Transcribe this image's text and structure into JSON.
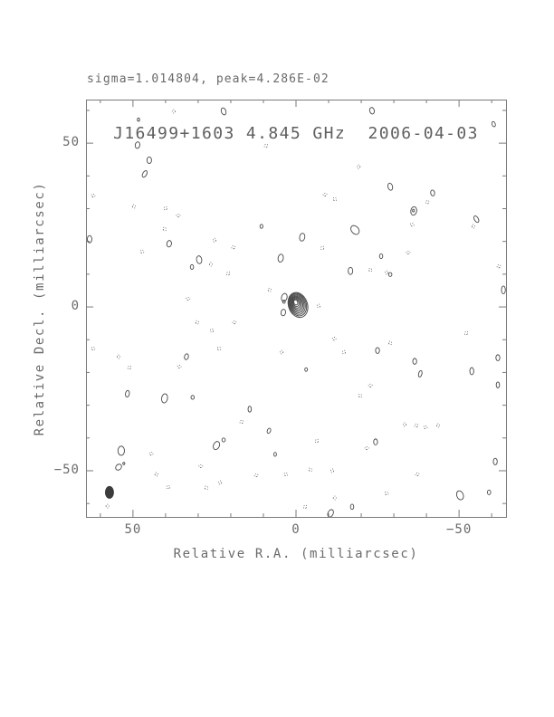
{
  "chart_data": {
    "type": "contour",
    "header": "sigma=1.014804, peak=4.286E-02",
    "title": "J16499+1603 4.845 GHz  2006-04-03",
    "xlabel": "Relative R.A. (milliarcsec)",
    "ylabel": "Relative Decl. (milliarcsec)",
    "x_range": [
      64.4,
      -64.4
    ],
    "y_range": [
      63.3,
      -64.1
    ],
    "x_ticks": [
      {
        "value": 50,
        "label": "50"
      },
      {
        "value": 0,
        "label": "0"
      },
      {
        "value": -50,
        "label": "−50"
      }
    ],
    "y_ticks": [
      {
        "value": 50,
        "label": "50"
      },
      {
        "value": 0,
        "label": "0"
      },
      {
        "value": -50,
        "label": "−50"
      }
    ],
    "minor_tick_step": 10,
    "grid": false,
    "colors": {
      "text": "#6a6a6a",
      "frame": "#7a7a7a",
      "contour_positive": "#474747",
      "contour_negative": "#585858",
      "beam_fill": "#3c3c3c",
      "background": "#ffffff"
    },
    "source": {
      "name": "J16499+1603",
      "frequency_ghz": 4.845,
      "date": "2006-04-03",
      "sigma": 1.014804,
      "peak": "4.286E-02",
      "ra_mas": -0.6,
      "dec_mas": 0.6,
      "outer_rx_mas": 2.9,
      "outer_ry_mas": 3.9,
      "angle_deg": -20,
      "n_levels": 9
    },
    "satellite_contours": [
      [
        3.6,
        2.9,
        0.85,
        1.25,
        15
      ],
      [
        3.7,
        1.6,
        0.4,
        0.5,
        0
      ],
      [
        3.9,
        -1.7,
        0.7,
        1.0,
        10
      ]
    ],
    "beam": {
      "ra_mas": 57.2,
      "dec_mas": -56.6,
      "rx_mas": 1.25,
      "ry_mas": 1.8,
      "angle_deg": 0
    },
    "noise_contours_positive": [
      [
        22.2,
        59.7,
        0.7,
        1.1,
        -20
      ],
      [
        48.3,
        57.2,
        0.35,
        0.5,
        0
      ],
      [
        48.6,
        49.4,
        0.7,
        1.0,
        10
      ],
      [
        45.0,
        44.8,
        0.7,
        1.0,
        0
      ],
      [
        46.4,
        40.6,
        0.6,
        1.1,
        30
      ],
      [
        63.3,
        20.7,
        0.7,
        1.1,
        0
      ],
      [
        38.9,
        19.3,
        0.7,
        1.0,
        10
      ],
      [
        29.7,
        14.4,
        0.8,
        1.2,
        -10
      ],
      [
        31.9,
        12.2,
        0.5,
        0.7,
        0
      ],
      [
        10.6,
        24.6,
        0.45,
        0.6,
        0
      ],
      [
        4.7,
        14.9,
        0.8,
        1.2,
        10
      ],
      [
        -23.3,
        59.9,
        0.7,
        1.0,
        -15
      ],
      [
        -60.6,
        55.8,
        0.5,
        0.8,
        -20
      ],
      [
        -28.9,
        36.7,
        0.7,
        1.1,
        -15
      ],
      [
        -36.1,
        29.3,
        0.9,
        1.3,
        10
      ],
      [
        -36.0,
        29.4,
        0.3,
        0.4,
        0
      ],
      [
        -41.9,
        34.8,
        0.6,
        0.9,
        -10
      ],
      [
        -55.3,
        26.8,
        0.6,
        1.1,
        -30
      ],
      [
        -18.1,
        23.5,
        1.1,
        1.5,
        -40
      ],
      [
        -1.9,
        21.3,
        0.8,
        1.2,
        10
      ],
      [
        -26.1,
        15.5,
        0.5,
        0.7,
        0
      ],
      [
        -16.7,
        11.0,
        0.7,
        1.1,
        0
      ],
      [
        -28.9,
        9.9,
        0.5,
        0.6,
        0
      ],
      [
        -63.6,
        5.2,
        0.6,
        1.2,
        0
      ],
      [
        33.6,
        -15.2,
        0.6,
        0.9,
        15
      ],
      [
        51.7,
        -26.5,
        0.6,
        1.0,
        10
      ],
      [
        40.3,
        -27.9,
        0.9,
        1.4,
        10
      ],
      [
        31.7,
        -27.6,
        0.5,
        0.6,
        0
      ],
      [
        14.2,
        -31.2,
        0.5,
        0.9,
        0
      ],
      [
        8.3,
        -37.8,
        0.5,
        0.8,
        20
      ],
      [
        24.4,
        -42.3,
        0.9,
        1.3,
        25
      ],
      [
        22.2,
        -40.6,
        0.5,
        0.6,
        0
      ],
      [
        53.6,
        -43.9,
        1.0,
        1.4,
        0
      ],
      [
        6.4,
        -45.0,
        0.4,
        0.6,
        0
      ],
      [
        54.4,
        -48.9,
        0.8,
        1.0,
        45
      ],
      [
        52.8,
        -47.8,
        0.3,
        0.35,
        0
      ],
      [
        -25.0,
        -13.3,
        0.6,
        0.9,
        0
      ],
      [
        -36.4,
        -16.6,
        0.6,
        0.9,
        0
      ],
      [
        -38.1,
        -20.4,
        0.5,
        1.0,
        15
      ],
      [
        -53.9,
        -19.6,
        0.6,
        1.1,
        0
      ],
      [
        -61.9,
        -15.5,
        0.6,
        0.9,
        0
      ],
      [
        -61.9,
        -23.8,
        0.5,
        0.9,
        0
      ],
      [
        -3.1,
        -19.1,
        0.4,
        0.55,
        0
      ],
      [
        -24.4,
        -41.2,
        0.6,
        0.9,
        0
      ],
      [
        -61.1,
        -47.2,
        0.6,
        1.0,
        0
      ],
      [
        -50.3,
        -57.5,
        1.0,
        1.4,
        -20
      ],
      [
        -59.2,
        -56.6,
        0.5,
        0.7,
        0
      ],
      [
        -17.2,
        -61.0,
        0.5,
        0.8,
        0
      ],
      [
        -10.6,
        -63.0,
        0.8,
        1.2,
        25
      ]
    ],
    "noise_specks_negative": [
      [
        37.5,
        59.7
      ],
      [
        9.2,
        49.2
      ],
      [
        62.2,
        34.0
      ],
      [
        49.7,
        30.7
      ],
      [
        40.0,
        30.1
      ],
      [
        36.1,
        27.9
      ],
      [
        40.3,
        23.8
      ],
      [
        25.0,
        20.4
      ],
      [
        19.2,
        18.2
      ],
      [
        47.2,
        16.9
      ],
      [
        26.1,
        13.0
      ],
      [
        20.8,
        10.2
      ],
      [
        33.1,
        2.5
      ],
      [
        8.1,
        5.2
      ],
      [
        -6.9,
        0.3
      ],
      [
        -8.9,
        34.3
      ],
      [
        -11.9,
        32.9
      ],
      [
        -19.2,
        42.8
      ],
      [
        -40.3,
        32.0
      ],
      [
        -35.6,
        25.1
      ],
      [
        -54.4,
        24.6
      ],
      [
        -8.1,
        18.0
      ],
      [
        -34.4,
        16.6
      ],
      [
        -22.8,
        11.3
      ],
      [
        -27.8,
        10.5
      ],
      [
        -62.2,
        12.4
      ],
      [
        62.2,
        -12.7
      ],
      [
        54.4,
        -15.2
      ],
      [
        51.1,
        -18.5
      ],
      [
        35.8,
        -18.2
      ],
      [
        30.3,
        -4.7
      ],
      [
        25.8,
        -7.2
      ],
      [
        18.9,
        -4.7
      ],
      [
        23.6,
        -12.7
      ],
      [
        4.4,
        -13.8
      ],
      [
        16.7,
        -35.1
      ],
      [
        44.4,
        -44.8
      ],
      [
        42.8,
        -51.1
      ],
      [
        39.2,
        -55.0
      ],
      [
        29.2,
        -48.6
      ],
      [
        27.5,
        -55.2
      ],
      [
        23.3,
        -53.6
      ],
      [
        12.2,
        -51.4
      ],
      [
        3.1,
        -51.1
      ],
      [
        57.8,
        -60.8
      ],
      [
        -52.2,
        -8.0
      ],
      [
        -11.7,
        -9.7
      ],
      [
        -28.9,
        -11.0
      ],
      [
        -14.7,
        -13.8
      ],
      [
        -22.8,
        -24.0
      ],
      [
        -19.7,
        -27.1
      ],
      [
        -33.3,
        -35.9
      ],
      [
        -36.9,
        -36.2
      ],
      [
        -39.7,
        -36.7
      ],
      [
        -43.6,
        -36.2
      ],
      [
        -6.4,
        -40.9
      ],
      [
        -21.7,
        -43.1
      ],
      [
        -4.4,
        -49.7
      ],
      [
        -11.1,
        -50.0
      ],
      [
        -37.2,
        -51.1
      ],
      [
        -27.8,
        -56.9
      ],
      [
        -11.9,
        -58.3
      ],
      [
        -2.8,
        -61.0
      ]
    ]
  }
}
